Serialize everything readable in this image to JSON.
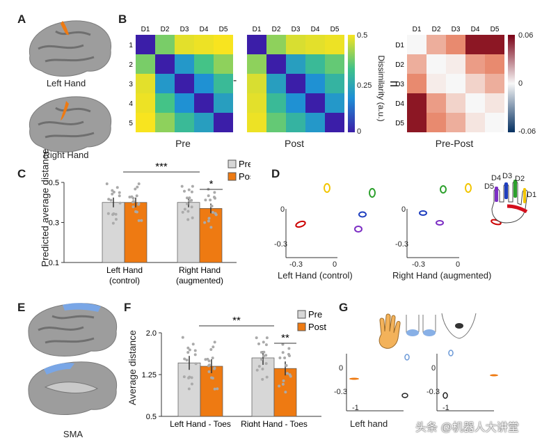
{
  "panels": {
    "A": "A",
    "B": "B",
    "C": "C",
    "D": "D",
    "E": "E",
    "F": "F",
    "G": "G"
  },
  "panel_a": {
    "top_caption": "Left Hand",
    "bottom_caption": "Right Hand"
  },
  "panel_b": {
    "digits": [
      "D1",
      "D2",
      "D3",
      "D4",
      "D5"
    ],
    "pre_title": "Pre",
    "post_title": "Post",
    "diff_title": "Pre-Post",
    "minus": "-",
    "equals": "=",
    "cbar1": {
      "label": "Dissimilarity (a.u.)",
      "ticks": [
        "0.5",
        "0.25",
        "0"
      ]
    },
    "cbar2": {
      "ticks": [
        "0.06",
        "0",
        "-0.06"
      ]
    },
    "colors": {
      "viridis_low": "#3b1ea8",
      "viridis_high": "#f8e41f",
      "diverging_low": "#053061",
      "diverging_high": "#7a0015"
    }
  },
  "panel_c": {
    "legend_pre": "Pre",
    "legend_post": "Post",
    "sig_outer": "***",
    "sig_inner": "*",
    "colors": {
      "pre": "#d7d7d7",
      "post": "#ee7a12"
    }
  },
  "panel_d": {
    "left_caption": "Left Hand (control)",
    "right_caption": "Right Hand (augmented)",
    "digits": [
      "D1",
      "D2",
      "D3",
      "D4",
      "D5"
    ],
    "ticks": {
      "zero": "0",
      "neg": "-0.3"
    },
    "digit_colors": [
      "#d40f1c",
      "#ff9e16",
      "#f2c500",
      "#2ca02c",
      "#1f3fbf",
      "#7c2ec4"
    ]
  },
  "panel_e": {
    "caption": "SMA"
  },
  "panel_f": {
    "legend_pre": "Pre",
    "legend_post": "Post",
    "sig_outer": "**",
    "sig_inner": "**"
  },
  "panel_g": {
    "caption": "Left hand",
    "ticks": {
      "zero": "0",
      "neg": "-0.3",
      "x": "-1"
    }
  },
  "watermark": "头条 @机器人大讲堂",
  "chart_data": [
    {
      "type": "heatmap",
      "title": "Pre",
      "categories": [
        "D1",
        "D2",
        "D3",
        "D4",
        "D5"
      ],
      "values": [
        [
          0.0,
          0.38,
          0.48,
          0.49,
          0.5
        ],
        [
          0.38,
          0.0,
          0.2,
          0.33,
          0.4
        ],
        [
          0.48,
          0.2,
          0.0,
          0.18,
          0.3
        ],
        [
          0.49,
          0.33,
          0.18,
          0.0,
          0.22
        ],
        [
          0.5,
          0.4,
          0.3,
          0.22,
          0.0
        ]
      ],
      "zlim": [
        0,
        0.5
      ],
      "colorbar_label": "Dissimilarity (a.u.)"
    },
    {
      "type": "heatmap",
      "title": "Post",
      "categories": [
        "D1",
        "D2",
        "D3",
        "D4",
        "D5"
      ],
      "values": [
        [
          0.0,
          0.4,
          0.47,
          0.48,
          0.49
        ],
        [
          0.4,
          0.0,
          0.22,
          0.3,
          0.36
        ],
        [
          0.47,
          0.22,
          0.0,
          0.18,
          0.28
        ],
        [
          0.48,
          0.3,
          0.18,
          0.0,
          0.2
        ],
        [
          0.49,
          0.36,
          0.28,
          0.2,
          0.0
        ]
      ],
      "zlim": [
        0,
        0.5
      ]
    },
    {
      "type": "heatmap",
      "title": "Pre-Post",
      "categories": [
        "D1",
        "D2",
        "D3",
        "D4",
        "D5"
      ],
      "values": [
        [
          0.0,
          0.02,
          0.03,
          0.055,
          0.055
        ],
        [
          0.02,
          0.0,
          0.003,
          0.025,
          0.03
        ],
        [
          0.03,
          0.003,
          0.0,
          0.01,
          0.02
        ],
        [
          0.055,
          0.025,
          0.01,
          0.0,
          0.005
        ],
        [
          0.055,
          0.03,
          0.02,
          0.005,
          0.0
        ]
      ],
      "zlim": [
        -0.06,
        0.06
      ]
    },
    {
      "type": "bar",
      "categories": [
        "Left Hand (control)",
        "Right Hand (augmented)"
      ],
      "ylabel": "Predicted average distance",
      "ylim": [
        0.1,
        0.5
      ],
      "yticks": [
        "0.1",
        "0.3",
        "0.5"
      ],
      "series": [
        {
          "name": "Pre",
          "values": [
            0.4,
            0.4
          ]
        },
        {
          "name": "Post",
          "values": [
            0.4,
            0.37
          ]
        }
      ]
    },
    {
      "type": "bar",
      "categories": [
        "Left Hand - Toes",
        "Right Hand - Toes"
      ],
      "ylabel": "Average distance",
      "ylim": [
        0.5,
        2.0
      ],
      "yticks": [
        "0.5",
        "1.25",
        "2.0"
      ],
      "series": [
        {
          "name": "Pre",
          "values": [
            1.46,
            1.55
          ]
        },
        {
          "name": "Post",
          "values": [
            1.4,
            1.36
          ]
        }
      ]
    }
  ]
}
